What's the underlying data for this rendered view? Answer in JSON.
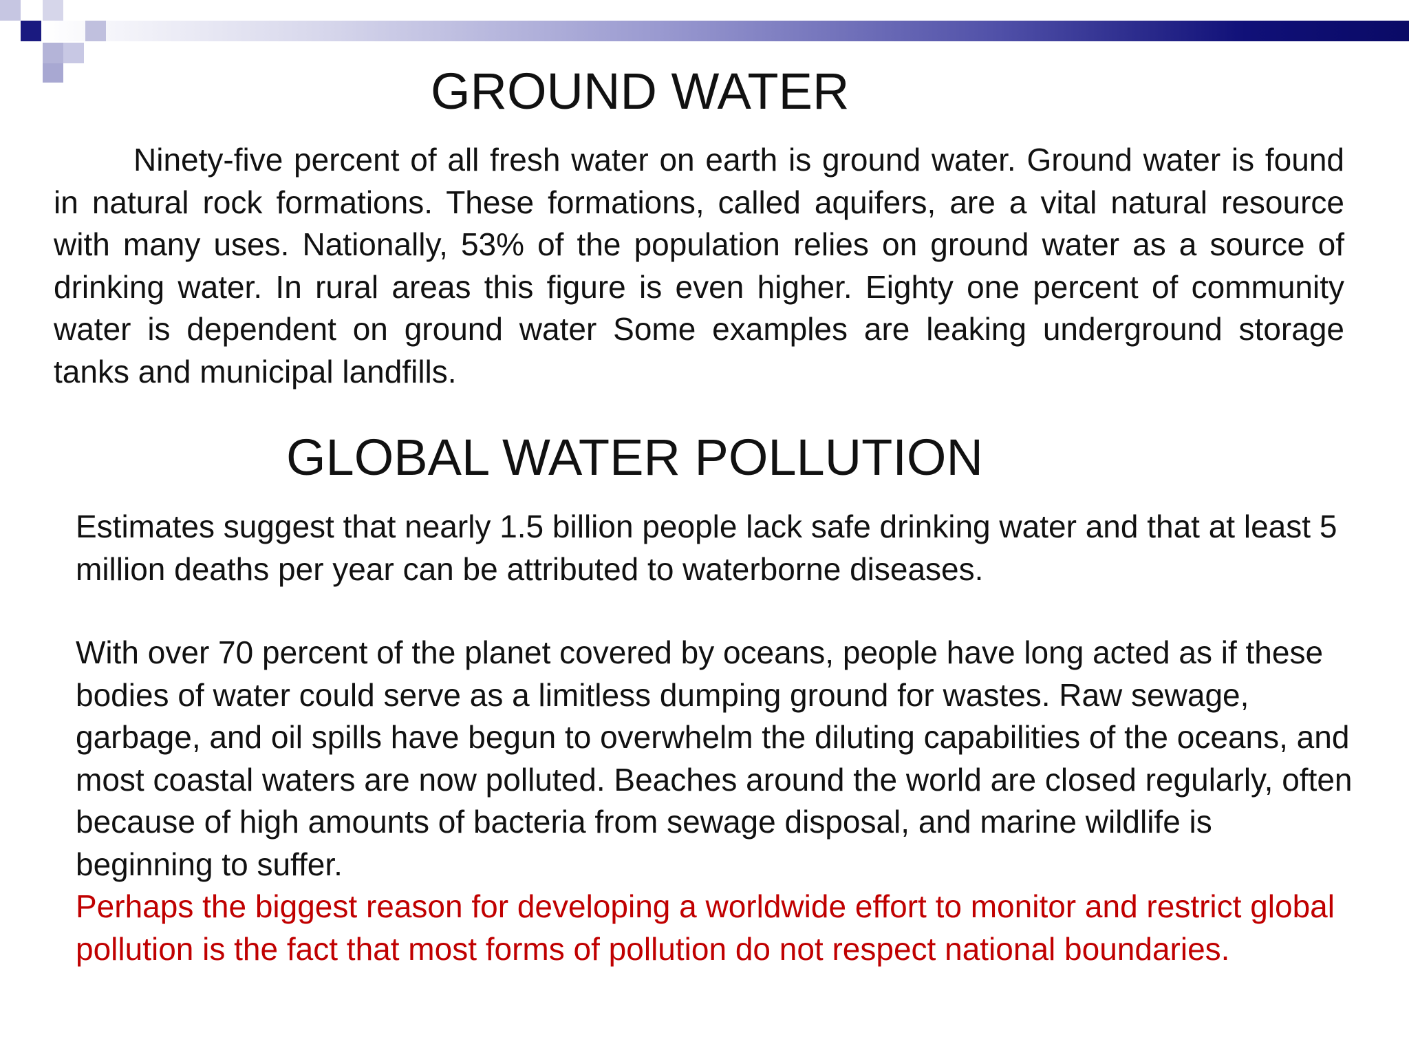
{
  "slide": {
    "colors": {
      "accent_navy": "#1a1a80",
      "bar_gradient_end": "#0a0a66",
      "emphasis_red": "#c00000",
      "text": "#111111"
    },
    "ground_water": {
      "heading": "GROUND WATER",
      "paragraph": "Ninety-five percent of all fresh water on earth is ground water.  Ground water is found in natural rock formations.  These formations, called aquifers, are a vital natural resource with many uses.  Nationally, 53% of the population relies on ground water as a source of drinking water.  In rural areas this figure is even higher.  Eighty one percent of community water is dependent on ground water Some examples are leaking underground storage tanks and municipal landfills."
    },
    "global_water_pollution": {
      "heading": "GLOBAL WATER POLLUTION",
      "paragraph_estimates": "Estimates suggest that nearly 1.5 billion people lack safe drinking water and that at least 5 million deaths per year can be attributed to waterborne diseases.",
      "paragraph_oceans": "With over 70 percent of the planet covered by oceans, people have long acted as if these bodies of water could serve as a limitless dumping ground for wastes. Raw sewage, garbage, and oil spills have begun to overwhelm the diluting capabilities of the oceans, and most coastal waters are now polluted. Beaches around the world are closed regularly, often because of high amounts of bacteria from sewage disposal, and marine wildlife is beginning to suffer.",
      "paragraph_emphasis": "Perhaps the biggest reason for developing a worldwide effort to monitor and restrict global pollution is the fact that most forms of pollution do not respect national boundaries."
    }
  }
}
